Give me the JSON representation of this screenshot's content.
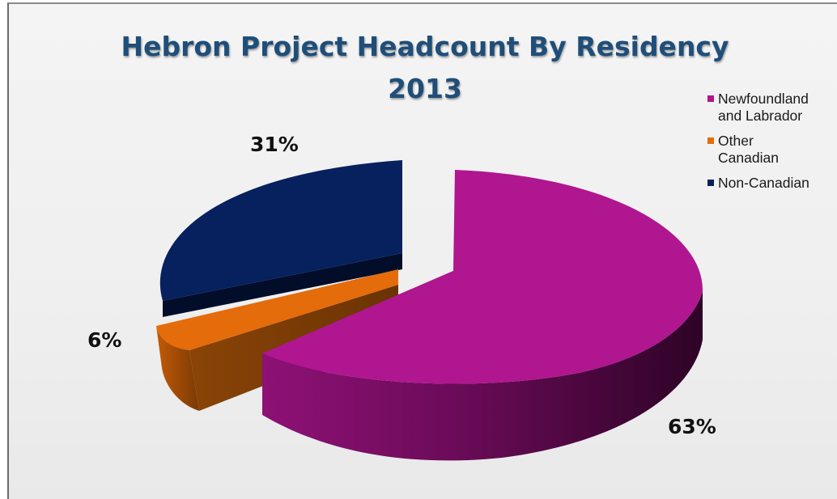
{
  "chart_data": {
    "type": "pie",
    "title": "Hebron Project Headcount By Residency",
    "subtitle": "2013",
    "categories": [
      "Newfoundland and Labrador",
      "Other Canadian",
      "Non-Canadian"
    ],
    "values": [
      63,
      6,
      31
    ],
    "data_labels": [
      "63%",
      "6%",
      "31%"
    ],
    "three_d": true,
    "exploded": true,
    "legend_position": "right",
    "colors": [
      "#b0168f",
      "#e46c0a",
      "#07215e"
    ]
  },
  "legend": [
    {
      "label_line1": "Newfoundland",
      "label_line2": "and Labrador",
      "color": "#b0168f"
    },
    {
      "label_line1": "Other",
      "label_line2": "Canadian",
      "color": "#e46c0a"
    },
    {
      "label_line1": "Non-Canadian",
      "label_line2": "",
      "color": "#07215e"
    }
  ]
}
